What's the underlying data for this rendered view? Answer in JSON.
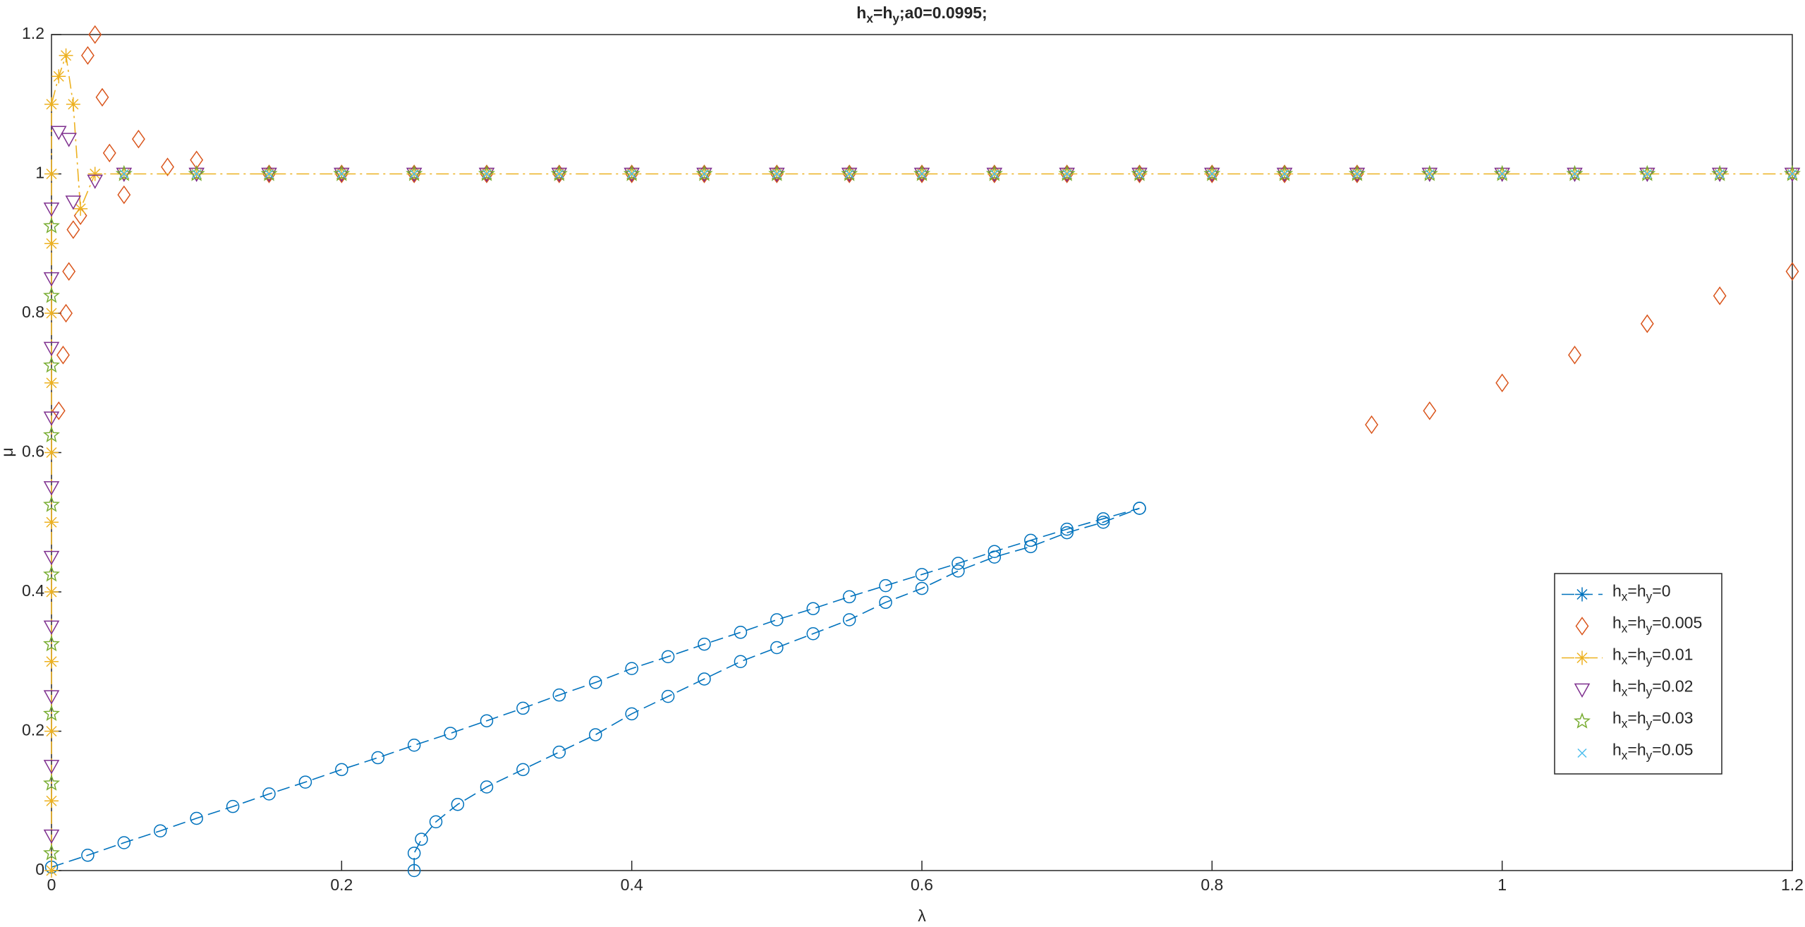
{
  "chart_data": {
    "type": "scatter",
    "title": "hx=hy;a0=0.0995;",
    "xlabel": "λ",
    "ylabel": "μ",
    "xlim": [
      0,
      1.2
    ],
    "ylim": [
      0,
      1.2
    ],
    "xticks": [
      0,
      0.2,
      0.4,
      0.6,
      0.8,
      1,
      1.2
    ],
    "yticks": [
      0,
      0.2,
      0.4,
      0.6,
      0.8,
      1,
      1.2
    ],
    "grid": false,
    "legend": "southeast",
    "series": [
      {
        "name": "hx=hy=0",
        "color": "#0072bd",
        "marker": "o",
        "legend_marker": "*",
        "line": "dashed",
        "x": [
          0,
          0.025,
          0.05,
          0.075,
          0.1,
          0.125,
          0.15,
          0.175,
          0.2,
          0.225,
          0.25,
          0.275,
          0.3,
          0.325,
          0.35,
          0.375,
          0.4,
          0.425,
          0.45,
          0.475,
          0.5,
          0.525,
          0.55,
          0.575,
          0.6,
          0.625,
          0.65,
          0.675,
          0.7,
          0.725,
          0.75,
          null,
          0.25,
          0.25,
          0.255,
          0.265,
          0.28,
          0.3,
          0.325,
          0.35,
          0.375,
          0.4,
          0.425,
          0.45,
          0.475,
          0.5,
          0.525,
          0.55,
          0.575,
          0.6,
          0.625,
          0.65,
          0.675,
          0.7,
          0.725,
          0.75
        ],
        "values": [
          0.005,
          0.022,
          0.04,
          0.057,
          0.075,
          0.092,
          0.11,
          0.127,
          0.145,
          0.162,
          0.18,
          0.197,
          0.215,
          0.233,
          0.252,
          0.27,
          0.29,
          0.307,
          0.325,
          0.342,
          0.36,
          0.376,
          0.393,
          0.409,
          0.425,
          0.441,
          0.458,
          0.474,
          0.49,
          0.505,
          0.52,
          null,
          0,
          0.025,
          0.045,
          0.07,
          0.095,
          0.12,
          0.145,
          0.17,
          0.195,
          0.225,
          0.25,
          0.275,
          0.3,
          0.32,
          0.34,
          0.36,
          0.385,
          0.405,
          0.43,
          0.45,
          0.465,
          0.485,
          0.5,
          0.52
        ]
      },
      {
        "name": "hx=hy=0.005",
        "color": "#d95319",
        "marker": "d",
        "x": [
          0.005,
          0.008,
          0.01,
          0.012,
          0.015,
          0.02,
          0.025,
          0.03,
          0.035,
          0.04,
          0.05,
          0.06,
          0.08,
          0.1,
          0.15,
          0.2,
          0.25,
          0.3,
          0.35,
          0.4,
          0.45,
          0.5,
          0.55,
          0.6,
          0.65,
          0.7,
          0.75,
          0.8,
          0.85,
          0.9,
          0.91,
          0.95,
          1,
          1.05,
          1.1,
          1.15,
          1.2
        ],
        "values": [
          0.66,
          0.74,
          0.8,
          0.86,
          0.92,
          0.94,
          1.17,
          1.2,
          1.11,
          1.03,
          0.97,
          1.05,
          1.01,
          1.02,
          1,
          1,
          1,
          1,
          1,
          1,
          1,
          1,
          1,
          1,
          1,
          1,
          1,
          1,
          1,
          1,
          0.64,
          0.66,
          0.7,
          0.74,
          0.785,
          0.825,
          0.86
        ]
      },
      {
        "name": "hx=hy=0.01",
        "color": "#edb120",
        "marker": "*",
        "line": "dashdot",
        "x": [
          0,
          0,
          0,
          0,
          0,
          0,
          0,
          0,
          0,
          0,
          0,
          0,
          0.005,
          0.01,
          0.015,
          0.02,
          0.03,
          0.05,
          0.1,
          0.15,
          0.2,
          0.25,
          0.3,
          0.35,
          0.4,
          0.45,
          0.5,
          0.55,
          0.6,
          0.65,
          0.7,
          0.75,
          0.8,
          0.85,
          0.9,
          0.95,
          1,
          1.05,
          1.1,
          1.15,
          1.2
        ],
        "values": [
          0,
          0.1,
          0.2,
          0.3,
          0.4,
          0.5,
          0.6,
          0.7,
          0.8,
          0.9,
          1,
          1.1,
          1.14,
          1.17,
          1.1,
          0.95,
          1,
          1,
          1,
          1,
          1,
          1,
          1,
          1,
          1,
          1,
          1,
          1,
          1,
          1,
          1,
          1,
          1,
          1,
          1,
          1,
          1,
          1,
          1,
          1,
          1
        ]
      },
      {
        "name": "hx=hy=0.02",
        "color": "#7e2f8e",
        "marker": "v",
        "x": [
          0,
          0,
          0,
          0,
          0,
          0,
          0,
          0,
          0,
          0,
          0.005,
          0.012,
          0.015,
          0.03,
          0.05,
          0.1,
          0.15,
          0.2,
          0.25,
          0.3,
          0.35,
          0.4,
          0.45,
          0.5,
          0.55,
          0.6,
          0.65,
          0.7,
          0.75,
          0.8,
          0.85,
          0.9,
          0.95,
          1,
          1.05,
          1.1,
          1.15,
          1.2
        ],
        "values": [
          0.05,
          0.15,
          0.25,
          0.35,
          0.45,
          0.55,
          0.65,
          0.75,
          0.85,
          0.95,
          1.06,
          1.05,
          0.96,
          0.99,
          1,
          1,
          1,
          1,
          1,
          1,
          1,
          1,
          1,
          1,
          1,
          1,
          1,
          1,
          1,
          1,
          1,
          1,
          1,
          1,
          1,
          1,
          1,
          1
        ]
      },
      {
        "name": "hx=hy=0.03",
        "color": "#77ac30",
        "marker": "p",
        "x": [
          0,
          0,
          0,
          0,
          0,
          0,
          0,
          0,
          0,
          0,
          0.05,
          0.1,
          0.15,
          0.2,
          0.25,
          0.3,
          0.35,
          0.4,
          0.45,
          0.5,
          0.55,
          0.6,
          0.65,
          0.7,
          0.75,
          0.8,
          0.85,
          0.9,
          0.95,
          1,
          1.05,
          1.1,
          1.15,
          1.2
        ],
        "values": [
          0.025,
          0.125,
          0.225,
          0.325,
          0.425,
          0.525,
          0.625,
          0.725,
          0.825,
          0.925,
          1,
          1,
          1,
          1,
          1,
          1,
          1,
          1,
          1,
          1,
          1,
          1,
          1,
          1,
          1,
          1,
          1,
          1,
          1,
          1,
          1,
          1,
          1,
          1
        ]
      },
      {
        "name": "hx=hy=0.05",
        "color": "#4dbeee",
        "marker": "x",
        "x": [
          0.05,
          0.1,
          0.15,
          0.2,
          0.25,
          0.3,
          0.35,
          0.4,
          0.45,
          0.5,
          0.55,
          0.6,
          0.65,
          0.7,
          0.75,
          0.8,
          0.85,
          0.9,
          0.95,
          1,
          1.05,
          1.1,
          1.15,
          1.2
        ],
        "values": [
          1,
          1,
          1,
          1,
          1,
          1,
          1,
          1,
          1,
          1,
          1,
          1,
          1,
          1,
          1,
          1,
          1,
          1,
          1,
          1,
          1,
          1,
          1,
          1
        ]
      }
    ]
  }
}
